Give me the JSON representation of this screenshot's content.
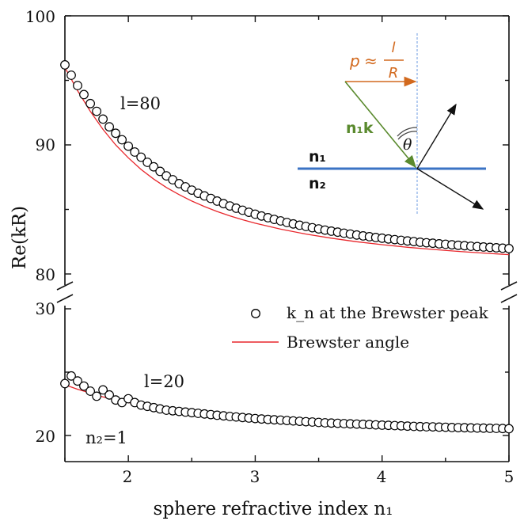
{
  "chart_data": {
    "type": "scatter",
    "xlabel": "sphere refractive index n₁",
    "ylabel": "Re(kR)",
    "xlim": [
      1.5,
      5
    ],
    "x_ticks": [
      "2",
      "3",
      "4",
      "5"
    ],
    "y_break": true,
    "y_upper_range": [
      80,
      100
    ],
    "y_upper_ticks": [
      "80",
      "90",
      "100"
    ],
    "y_lower_range": [
      18,
      30
    ],
    "y_lower_ticks": [
      "20",
      "30"
    ],
    "grid": false,
    "legend": {
      "placement": "center-right",
      "entries": [
        {
          "label": "k_n at the Brewster peak",
          "marker": "open-circle"
        },
        {
          "label": "Brewster angle",
          "marker": "red-line"
        }
      ]
    },
    "annotations": {
      "l80": "l=80",
      "l20": "l=20",
      "n2": "n₂=1"
    },
    "series": [
      {
        "name": "k_n at the Brewster peak (l=80)",
        "kind": "markers",
        "x": [
          1.5,
          1.55,
          1.6,
          1.65,
          1.7,
          1.75,
          1.8,
          1.85,
          1.9,
          1.95,
          2.0,
          2.05,
          2.1,
          2.15,
          2.2,
          2.25,
          2.3,
          2.35,
          2.4,
          2.45,
          2.5,
          2.55,
          2.6,
          2.65,
          2.7,
          2.75,
          2.8,
          2.85,
          2.9,
          2.95,
          3.0,
          3.05,
          3.1,
          3.15,
          3.2,
          3.25,
          3.3,
          3.35,
          3.4,
          3.45,
          3.5,
          3.55,
          3.6,
          3.65,
          3.7,
          3.75,
          3.8,
          3.85,
          3.9,
          3.95,
          4.0,
          4.05,
          4.1,
          4.15,
          4.2,
          4.25,
          4.3,
          4.35,
          4.4,
          4.45,
          4.5,
          4.55,
          4.6,
          4.65,
          4.7,
          4.75,
          4.8,
          4.85,
          4.9,
          4.95,
          5.0
        ],
        "y": [
          96.2,
          95.4,
          94.6,
          93.9,
          93.2,
          92.6,
          92.0,
          91.4,
          90.9,
          90.4,
          89.9,
          89.45,
          89.05,
          88.65,
          88.3,
          87.95,
          87.6,
          87.3,
          87.0,
          86.75,
          86.5,
          86.25,
          86.05,
          85.85,
          85.65,
          85.45,
          85.27,
          85.1,
          84.94,
          84.78,
          84.63,
          84.49,
          84.36,
          84.23,
          84.11,
          83.99,
          83.88,
          83.78,
          83.68,
          83.58,
          83.49,
          83.4,
          83.32,
          83.24,
          83.16,
          83.09,
          83.02,
          82.95,
          82.89,
          82.83,
          82.77,
          82.71,
          82.66,
          82.61,
          82.56,
          82.51,
          82.46,
          82.42,
          82.38,
          82.34,
          82.3,
          82.26,
          82.22,
          82.19,
          82.15,
          82.12,
          82.09,
          82.06,
          82.03,
          82.0,
          81.97
        ]
      },
      {
        "name": "Brewster angle (l=80)",
        "kind": "line",
        "color": "#e8262b",
        "x": [
          1.5,
          1.6,
          1.7,
          1.8,
          1.9,
          2.0,
          2.1,
          2.2,
          2.3,
          2.4,
          2.5,
          2.6,
          2.7,
          2.8,
          2.9,
          3.0,
          3.2,
          3.4,
          3.6,
          3.8,
          4.0,
          4.2,
          4.4,
          4.6,
          4.8,
          5.0
        ],
        "y": [
          96.0,
          94.2,
          92.6,
          91.2,
          90.0,
          89.0,
          88.1,
          87.35,
          86.7,
          86.15,
          85.65,
          85.22,
          84.84,
          84.5,
          84.2,
          83.93,
          83.47,
          83.09,
          82.77,
          82.5,
          82.27,
          82.07,
          81.9,
          81.75,
          81.62,
          81.5
        ]
      },
      {
        "name": "k_n at the Brewster peak (l=20)",
        "kind": "markers",
        "x": [
          1.5,
          1.55,
          1.6,
          1.65,
          1.7,
          1.75,
          1.8,
          1.85,
          1.9,
          1.95,
          2.0,
          2.05,
          2.1,
          2.15,
          2.2,
          2.25,
          2.3,
          2.35,
          2.4,
          2.45,
          2.5,
          2.55,
          2.6,
          2.65,
          2.7,
          2.75,
          2.8,
          2.85,
          2.9,
          2.95,
          3.0,
          3.05,
          3.1,
          3.15,
          3.2,
          3.25,
          3.3,
          3.35,
          3.4,
          3.45,
          3.5,
          3.55,
          3.6,
          3.65,
          3.7,
          3.75,
          3.8,
          3.85,
          3.9,
          3.95,
          4.0,
          4.05,
          4.1,
          4.15,
          4.2,
          4.25,
          4.3,
          4.35,
          4.4,
          4.45,
          4.5,
          4.55,
          4.6,
          4.65,
          4.7,
          4.75,
          4.8,
          4.85,
          4.9,
          4.95,
          5.0
        ],
        "y": [
          24.1,
          24.7,
          24.3,
          23.9,
          23.5,
          23.1,
          23.6,
          23.2,
          22.8,
          22.6,
          22.9,
          22.6,
          22.4,
          22.3,
          22.2,
          22.1,
          22.0,
          21.95,
          21.9,
          21.85,
          21.8,
          21.75,
          21.7,
          21.65,
          21.6,
          21.55,
          21.5,
          21.46,
          21.42,
          21.38,
          21.34,
          21.3,
          21.27,
          21.24,
          21.21,
          21.18,
          21.15,
          21.12,
          21.09,
          21.06,
          21.03,
          21.0,
          20.98,
          20.96,
          20.94,
          20.92,
          20.9,
          20.88,
          20.86,
          20.84,
          20.82,
          20.8,
          20.78,
          20.76,
          20.74,
          20.72,
          20.7,
          20.69,
          20.68,
          20.66,
          20.65,
          20.63,
          20.62,
          20.61,
          20.6,
          20.59,
          20.58,
          20.57,
          20.56,
          20.55,
          20.54
        ]
      },
      {
        "name": "Brewster angle (l=20)",
        "kind": "line",
        "color": "#e8262b",
        "x": [
          1.5,
          1.6,
          1.7,
          1.8,
          1.9,
          2.0,
          2.2,
          2.4,
          2.6,
          2.8,
          3.0,
          3.3,
          3.6,
          4.0,
          4.4,
          4.8,
          5.0
        ],
        "y": [
          24.0,
          23.65,
          23.35,
          23.05,
          22.8,
          22.6,
          22.25,
          21.95,
          21.72,
          21.52,
          21.35,
          21.15,
          20.98,
          20.8,
          20.66,
          20.55,
          20.5
        ]
      }
    ]
  },
  "inset": {
    "momentum_label": "p ≈ l/R",
    "momentum_p": "p",
    "momentum_approx": "≈",
    "momentum_num": "l",
    "momentum_den": "R",
    "wavevector_label": "n₁k",
    "angle_label": "θ",
    "n1_label": "n₁",
    "n2_label": "n₂",
    "momentum_color": "#d2691e",
    "wavevector_color": "#5a8a2e",
    "interface_color": "#3b73c4",
    "normal_color": "#6d9be0"
  },
  "colors": {
    "fit_line": "#e8262b",
    "markers": "#000000"
  }
}
